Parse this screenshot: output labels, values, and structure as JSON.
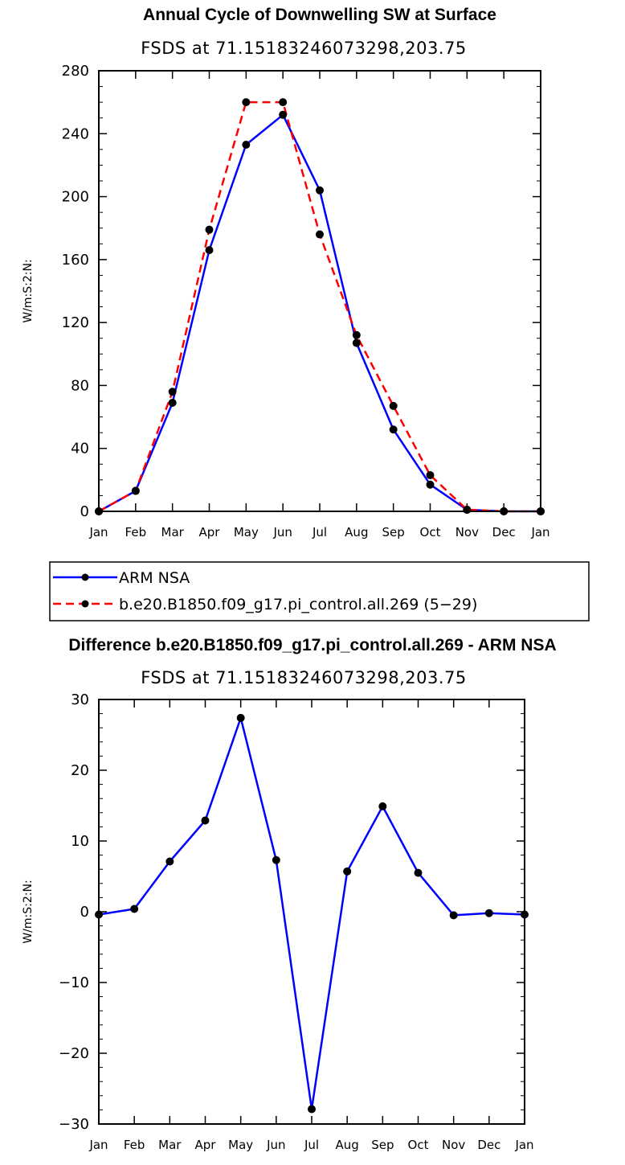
{
  "chart_data": [
    {
      "type": "line",
      "title": "Annual Cycle of Downwelling SW at Surface",
      "subtitle": "FSDS at 71.15183246073298,203.75",
      "ylabel": "W/m:S:2:N:",
      "xlabel": "",
      "categories": [
        "Jan",
        "Feb",
        "Mar",
        "Apr",
        "May",
        "Jun",
        "Jul",
        "Aug",
        "Sep",
        "Oct",
        "Nov",
        "Dec",
        "Jan"
      ],
      "ylim": [
        0,
        280
      ],
      "yticks": [
        0,
        40,
        80,
        120,
        160,
        200,
        240,
        280
      ],
      "legend_position": "bottom",
      "series": [
        {
          "name": "ARM NSA",
          "color": "#0000ff",
          "dash": "solid",
          "values": [
            0,
            13,
            69,
            166,
            233,
            252,
            204,
            107,
            52,
            17,
            1,
            0,
            0
          ]
        },
        {
          "name": "b.e20.B1850.f09_g17.pi_control.all.269 (5−29)",
          "color": "#ff0000",
          "dash": "dashed",
          "values": [
            0,
            13,
            76,
            179,
            260,
            260,
            176,
            112,
            67,
            23,
            1,
            0,
            0
          ]
        }
      ]
    },
    {
      "type": "line",
      "title": "Difference b.e20.B1850.f09_g17.pi_control.all.269 - ARM NSA",
      "subtitle": "FSDS at 71.15183246073298,203.75",
      "ylabel": "W/m:S:2:N:",
      "xlabel": "",
      "categories": [
        "Jan",
        "Feb",
        "Mar",
        "Apr",
        "May",
        "Jun",
        "Jul",
        "Aug",
        "Sep",
        "Oct",
        "Nov",
        "Dec",
        "Jan"
      ],
      "ylim": [
        -30,
        30
      ],
      "yticks": [
        -30,
        -20,
        -10,
        0,
        10,
        20,
        30
      ],
      "series": [
        {
          "name": "Difference",
          "color": "#0000ff",
          "dash": "solid",
          "values": [
            -0.4,
            0.4,
            7.1,
            12.9,
            27.4,
            7.3,
            -27.9,
            5.7,
            14.9,
            5.5,
            -0.5,
            -0.2,
            -0.4
          ]
        }
      ]
    }
  ]
}
